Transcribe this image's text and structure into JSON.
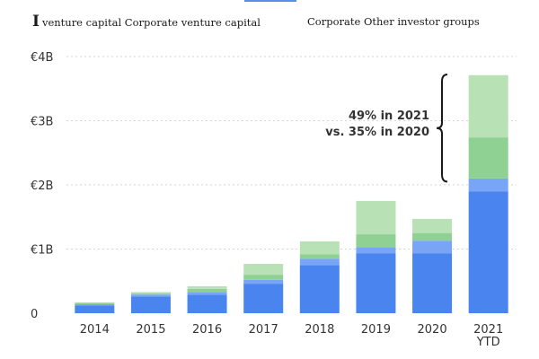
{
  "header": {
    "legend_lead": "I",
    "legend_left": "venture capital Corporate venture capital",
    "legend_right": "Corporate Other investor groups"
  },
  "colors": {
    "vc_dark": "#4a85ef",
    "vc_light": "#78a5f5",
    "corp_dark": "#8fd192",
    "corp_light": "#b8e2b5",
    "gridline": "#d6d6d6",
    "bracket": "#1a1a1a",
    "header_accent": "#5b8fe6"
  },
  "chart_data": {
    "type": "bar",
    "stacked": true,
    "categories": [
      "2014",
      "2015",
      "2016",
      "2017",
      "2018",
      "2019",
      "2020",
      "2021\nYTD"
    ],
    "series": [
      {
        "key": "vc_dark",
        "values": [
          0.12,
          0.26,
          0.29,
          0.46,
          0.75,
          0.93,
          0.93,
          1.9
        ]
      },
      {
        "key": "vc_light",
        "values": [
          0.02,
          0.03,
          0.04,
          0.06,
          0.1,
          0.1,
          0.2,
          0.2
        ]
      },
      {
        "key": "corp_dark",
        "values": [
          0.02,
          0.02,
          0.05,
          0.08,
          0.07,
          0.2,
          0.12,
          0.64
        ]
      },
      {
        "key": "corp_light",
        "values": [
          0.01,
          0.02,
          0.04,
          0.17,
          0.2,
          0.52,
          0.22,
          0.97
        ]
      }
    ],
    "y_ticks": [
      {
        "value": 0,
        "label": "0"
      },
      {
        "value": 1,
        "label": "€1B"
      },
      {
        "value": 2,
        "label": "€2B"
      },
      {
        "value": 3,
        "label": "€3B"
      },
      {
        "value": 4,
        "label": "€4B"
      }
    ],
    "ylim": [
      0,
      4
    ],
    "grid": true,
    "annotation": {
      "line1": "49% in 2021",
      "line2": "vs. 35% in 2020",
      "bracket_from": 2.05,
      "bracket_to": 3.72
    }
  }
}
